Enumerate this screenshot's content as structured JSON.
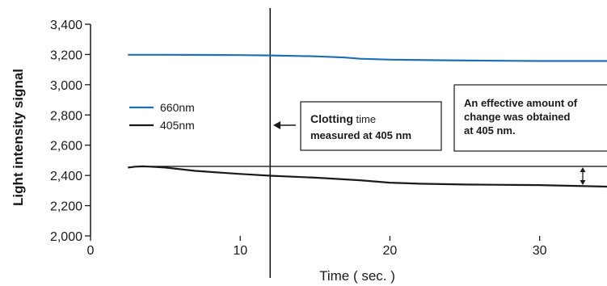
{
  "chart_data": {
    "type": "line",
    "title": "",
    "xlabel": "Time ( sec. )",
    "ylabel": "Light intensity signal",
    "xlim": [
      0,
      34.5
    ],
    "ylim": [
      2000,
      3400
    ],
    "x_ticks": [
      0,
      10,
      20,
      30
    ],
    "x_tick_labels": [
      "0",
      "10",
      "20",
      "30"
    ],
    "y_ticks": [
      2000,
      2200,
      2400,
      2600,
      2800,
      3000,
      3200,
      3400
    ],
    "y_tick_labels": [
      "2,000",
      "2,200",
      "2,400",
      "2,600",
      "2,800",
      "3,000",
      "3,200",
      "3,400"
    ],
    "grid": false,
    "legend_position": "left",
    "series": [
      {
        "name": "660nm",
        "color": "#1f6fb5",
        "x": [
          2.5,
          5,
          10,
          12,
          15,
          17,
          18,
          20,
          25,
          30,
          34.5
        ],
        "y": [
          3198,
          3198,
          3196,
          3194,
          3188,
          3180,
          3172,
          3166,
          3160,
          3157,
          3157
        ]
      },
      {
        "name": "405nm",
        "color": "#1a1a1a",
        "x": [
          2.5,
          3,
          3.5,
          4,
          5,
          7,
          10,
          12,
          15,
          18,
          20,
          22,
          25,
          27,
          30,
          34.5
        ],
        "y": [
          2452,
          2458,
          2460,
          2458,
          2452,
          2430,
          2410,
          2398,
          2385,
          2368,
          2352,
          2345,
          2340,
          2338,
          2336,
          2326
        ]
      }
    ],
    "reference_lines": [
      {
        "orientation": "vertical",
        "x": 12
      },
      {
        "orientation": "horizontal",
        "y": 2460,
        "x_from": 4
      }
    ],
    "annotations": [
      {
        "text_bold": "Clotting",
        "text_normal": " time",
        "line2": "measured at 405 nm"
      },
      {
        "line1": "An effective amount of",
        "line2": "change was obtained",
        "line3": "at 405 nm."
      }
    ]
  }
}
